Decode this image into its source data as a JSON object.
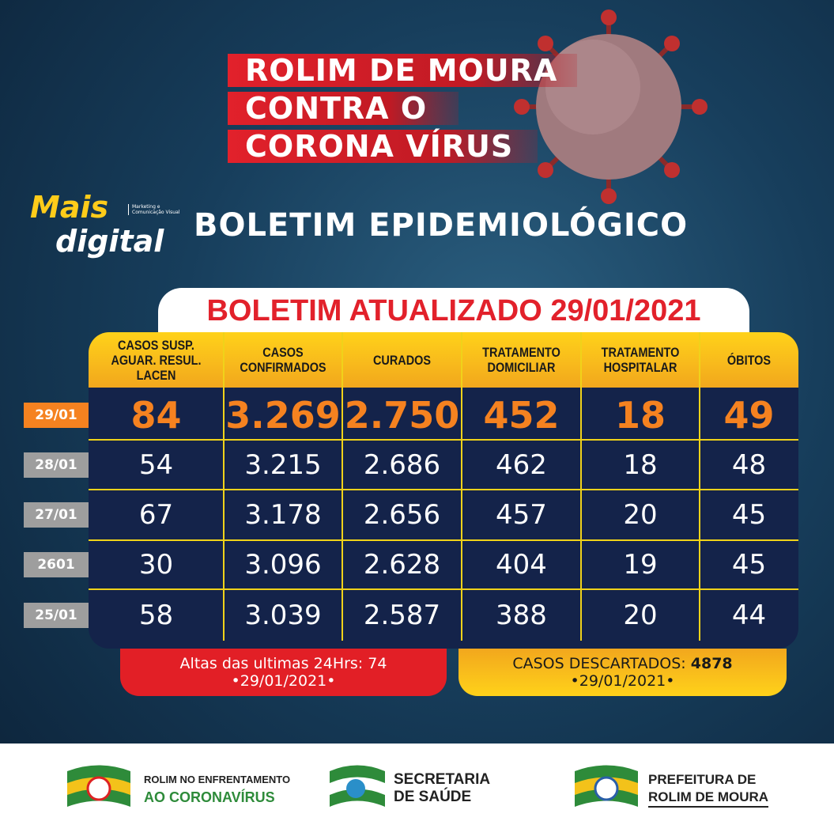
{
  "header": {
    "title_lines": [
      "ROLIM DE MOURA",
      "CONTRA O",
      "CORONA VÍRUS"
    ],
    "logo": {
      "line1": "Mais",
      "line2": "digital",
      "tagline": "Marketing e Comunicação Visual"
    },
    "subtitle": "BOLETIM EPIDEMIOLÓGICO"
  },
  "table": {
    "title": "BOLETIM ATUALIZADO 29/01/2021",
    "columns": [
      "CASOS SUSP. AGUAR. RESUL. LACEN",
      "CASOS CONFIRMADOS",
      "CURADOS",
      "TRATAMENTO DOMICILIAR",
      "TRATAMENTO HOSPITALAR",
      "ÓBITOS"
    ],
    "rows": [
      {
        "date": "29/01",
        "cells": [
          "84",
          "3.269",
          "2.750",
          "452",
          "18",
          "49"
        ]
      },
      {
        "date": "28/01",
        "cells": [
          "54",
          "3.215",
          "2.686",
          "462",
          "18",
          "48"
        ]
      },
      {
        "date": "27/01",
        "cells": [
          "67",
          "3.178",
          "2.656",
          "457",
          "20",
          "45"
        ]
      },
      {
        "date": "2601",
        "cells": [
          "30",
          "3.096",
          "2.628",
          "404",
          "19",
          "45"
        ]
      },
      {
        "date": "25/01",
        "cells": [
          "58",
          "3.039",
          "2.587",
          "388",
          "20",
          "44"
        ]
      }
    ]
  },
  "footer_boxes": {
    "discharges": {
      "text": "Altas das ultimas 24Hrs: 74",
      "date": "•29/01/2021•"
    },
    "discarded": {
      "label": "CASOS DESCARTADOS:",
      "value": "4878",
      "date": "•29/01/2021•"
    }
  },
  "logos": [
    {
      "line1": "ROLIM NO ENFRENTAMENTO",
      "line2": "AO CORONAVÍRUS"
    },
    {
      "line1": "SECRETARIA",
      "line2": "DE SAÚDE"
    },
    {
      "line1": "PREFEITURA DE",
      "line2": "ROLIM DE MOURA"
    }
  ]
}
